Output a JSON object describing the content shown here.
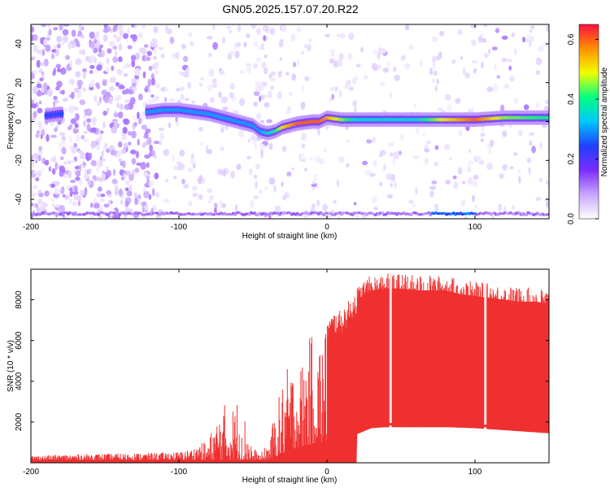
{
  "title": "GN05.2025.157.07.20.R22",
  "chart_data": [
    {
      "type": "heatmap",
      "xlabel": "Height of straight line (km)",
      "ylabel": "Frequency (Hz)",
      "xlim": [
        -200,
        150
      ],
      "ylim": [
        -50,
        50
      ],
      "x_ticks": [
        -200,
        -100,
        0,
        100
      ],
      "y_ticks": [
        -40,
        -20,
        0,
        20,
        40
      ],
      "colorbar": {
        "label": "Normalized spectral amplitude",
        "range": [
          0.0,
          0.65
        ],
        "ticks": [
          "0.0",
          "0.2",
          "0.4",
          "0.6"
        ],
        "colors": [
          "#ffffff",
          "#c8a6ff",
          "#7b2cff",
          "#2040ff",
          "#00c8ff",
          "#00ff80",
          "#f0ff00",
          "#ff9000",
          "#ff1040"
        ]
      },
      "ridge": {
        "x": [
          -190,
          -180,
          -120,
          -110,
          -100,
          -90,
          -80,
          -70,
          -60,
          -50,
          -45,
          -40,
          -35,
          -30,
          -20,
          -10,
          -5,
          0,
          10,
          20,
          40,
          60,
          80,
          100,
          120,
          150
        ],
        "y": [
          3,
          4,
          5,
          6,
          6,
          5,
          4,
          2,
          0,
          -2,
          -5,
          -6,
          -5,
          -3,
          -1,
          0,
          0,
          2,
          1,
          1,
          1,
          1,
          1,
          1,
          2,
          2
        ],
        "peak_amplitude": [
          0.25,
          0.25,
          0.3,
          0.3,
          0.3,
          0.3,
          0.3,
          0.3,
          0.3,
          0.3,
          0.3,
          0.35,
          0.4,
          0.5,
          0.6,
          0.6,
          0.6,
          0.55,
          0.45,
          0.35,
          0.35,
          0.35,
          0.5,
          0.6,
          0.45,
          0.4
        ]
      },
      "grid": false
    },
    {
      "type": "area",
      "xlabel": "Height of straight line (km)",
      "ylabel": "SNR (10 * v/v)",
      "xlim": [
        -200,
        150
      ],
      "ylim": [
        0,
        9500
      ],
      "x_ticks": [
        -200,
        -100,
        0,
        100
      ],
      "y_ticks": [
        2000,
        4000,
        6000,
        8000
      ],
      "color": "#f03030",
      "upper_envelope": {
        "x": [
          -200,
          -180,
          -160,
          -140,
          -120,
          -100,
          -90,
          -80,
          -75,
          -70,
          -65,
          -60,
          -55,
          -50,
          -45,
          -40,
          -35,
          -30,
          -25,
          -20,
          -15,
          -10,
          -5,
          0,
          5,
          10,
          15,
          20,
          25,
          30,
          40,
          50,
          60,
          70,
          80,
          90,
          100,
          110,
          120,
          130,
          140,
          150
        ],
        "y": [
          300,
          350,
          400,
          420,
          450,
          500,
          700,
          1200,
          2200,
          3000,
          2600,
          3300,
          2200,
          800,
          400,
          1000,
          2500,
          4000,
          5000,
          4500,
          5400,
          6500,
          6300,
          7000,
          7400,
          7500,
          8000,
          8600,
          9000,
          9200,
          9300,
          9300,
          9200,
          9200,
          9200,
          9000,
          8900,
          8800,
          8700,
          8600,
          8600,
          8500
        ]
      },
      "lower_envelope": {
        "x": [
          -200,
          -40,
          -30,
          -20,
          -10,
          0,
          10,
          20,
          30,
          40,
          60,
          80,
          100,
          120,
          140,
          150
        ],
        "y": [
          0,
          0,
          300,
          600,
          800,
          900,
          1100,
          1400,
          1700,
          1750,
          1750,
          1750,
          1700,
          1600,
          1500,
          1450
        ]
      },
      "gaps_x": [
        43,
        107
      ],
      "grid": false
    }
  ]
}
